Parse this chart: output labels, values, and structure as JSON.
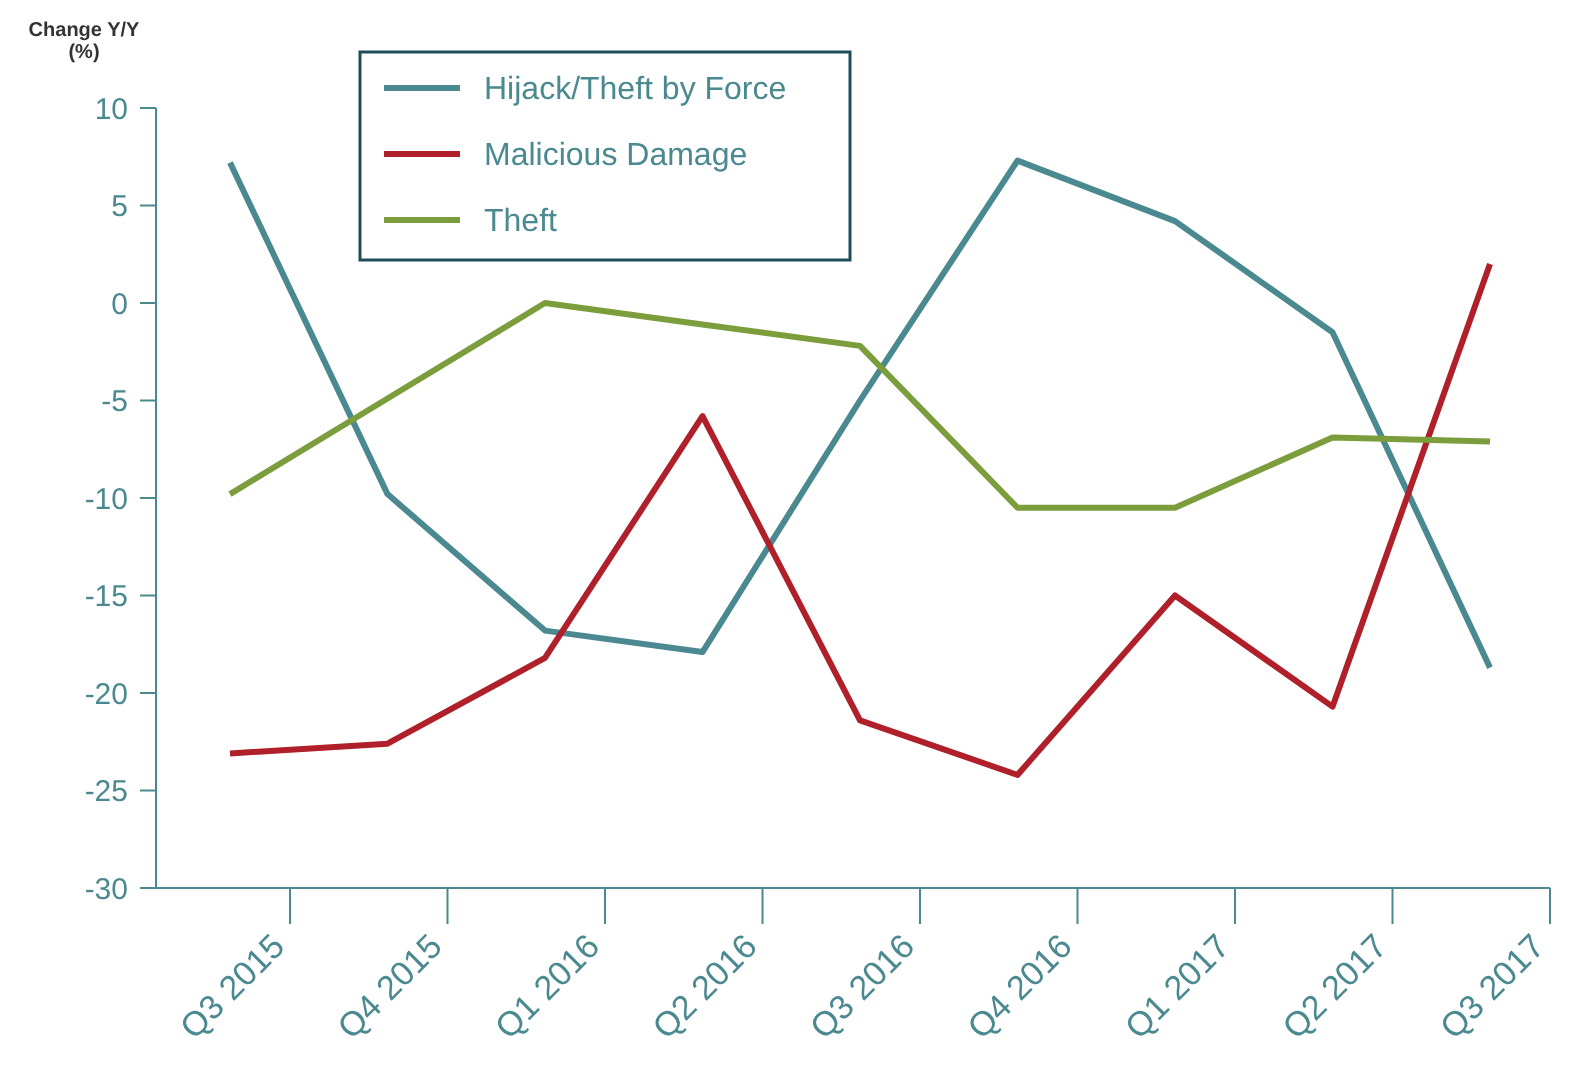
{
  "chart_data": {
    "type": "line",
    "ylabel": "Change Y/Y (%)",
    "categories": [
      "Q3 2015",
      "Q4 2015",
      "Q1 2016",
      "Q2 2016",
      "Q3 2016",
      "Q4 2016",
      "Q1 2017",
      "Q2 2017",
      "Q3 2017"
    ],
    "series": [
      {
        "name": "Hijack/Theft by Force",
        "color": "#4b8990",
        "values": [
          7.2,
          -9.8,
          -16.8,
          -17.9,
          -5,
          7.3,
          4.2,
          -1.5,
          -18.7
        ]
      },
      {
        "name": "Malicious Damage",
        "color": "#b0202a",
        "values": [
          -23.1,
          -22.6,
          -18.2,
          -5.8,
          -21.4,
          -24.2,
          -15,
          -20.7,
          2
        ]
      },
      {
        "name": "Theft",
        "color": "#7b9d3b",
        "values": [
          -9.8,
          -4.9,
          0,
          -1.1,
          -2.2,
          -10.5,
          -10.5,
          -6.9,
          -7.1
        ]
      }
    ],
    "ylim": [
      -30,
      10
    ],
    "yticks": [
      -30,
      -25,
      -20,
      -15,
      -10,
      -5,
      0,
      5,
      10
    ],
    "grid": false,
    "legend": "top left",
    "marker": "none",
    "line_style": "solid"
  }
}
